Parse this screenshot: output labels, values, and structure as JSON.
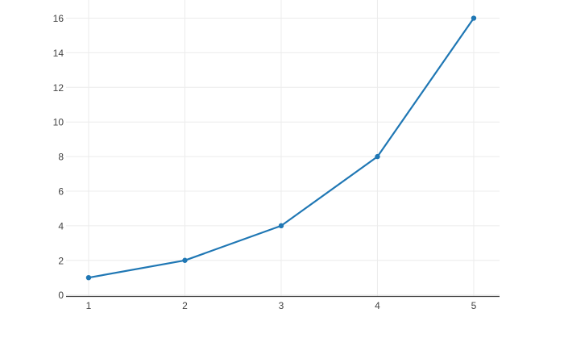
{
  "chart_data": {
    "type": "line",
    "mode": "lines+markers",
    "title": "",
    "xlabel": "",
    "ylabel": "",
    "x": [
      1,
      2,
      3,
      4,
      5
    ],
    "y": [
      1,
      2,
      4,
      8,
      16
    ],
    "x_ticks": [
      1,
      2,
      3,
      4,
      5
    ],
    "x_tick_labels": [
      "1",
      "2",
      "3",
      "4",
      "5"
    ],
    "y_ticks": [
      0,
      2,
      4,
      6,
      8,
      10,
      12,
      14,
      16
    ],
    "y_tick_labels": [
      "0",
      "2",
      "4",
      "6",
      "8",
      "10",
      "12",
      "14",
      "16"
    ],
    "xlim": [
      0.766,
      5.268
    ],
    "ylim": [
      -0.11,
      17.05
    ],
    "grid": true,
    "legend": false,
    "colors": {
      "line": "#1f77b4",
      "marker": "#1f77b4",
      "grid": "#ececec",
      "axis_line": "#444444",
      "tick_label": "#444444",
      "background": "#ffffff"
    }
  }
}
